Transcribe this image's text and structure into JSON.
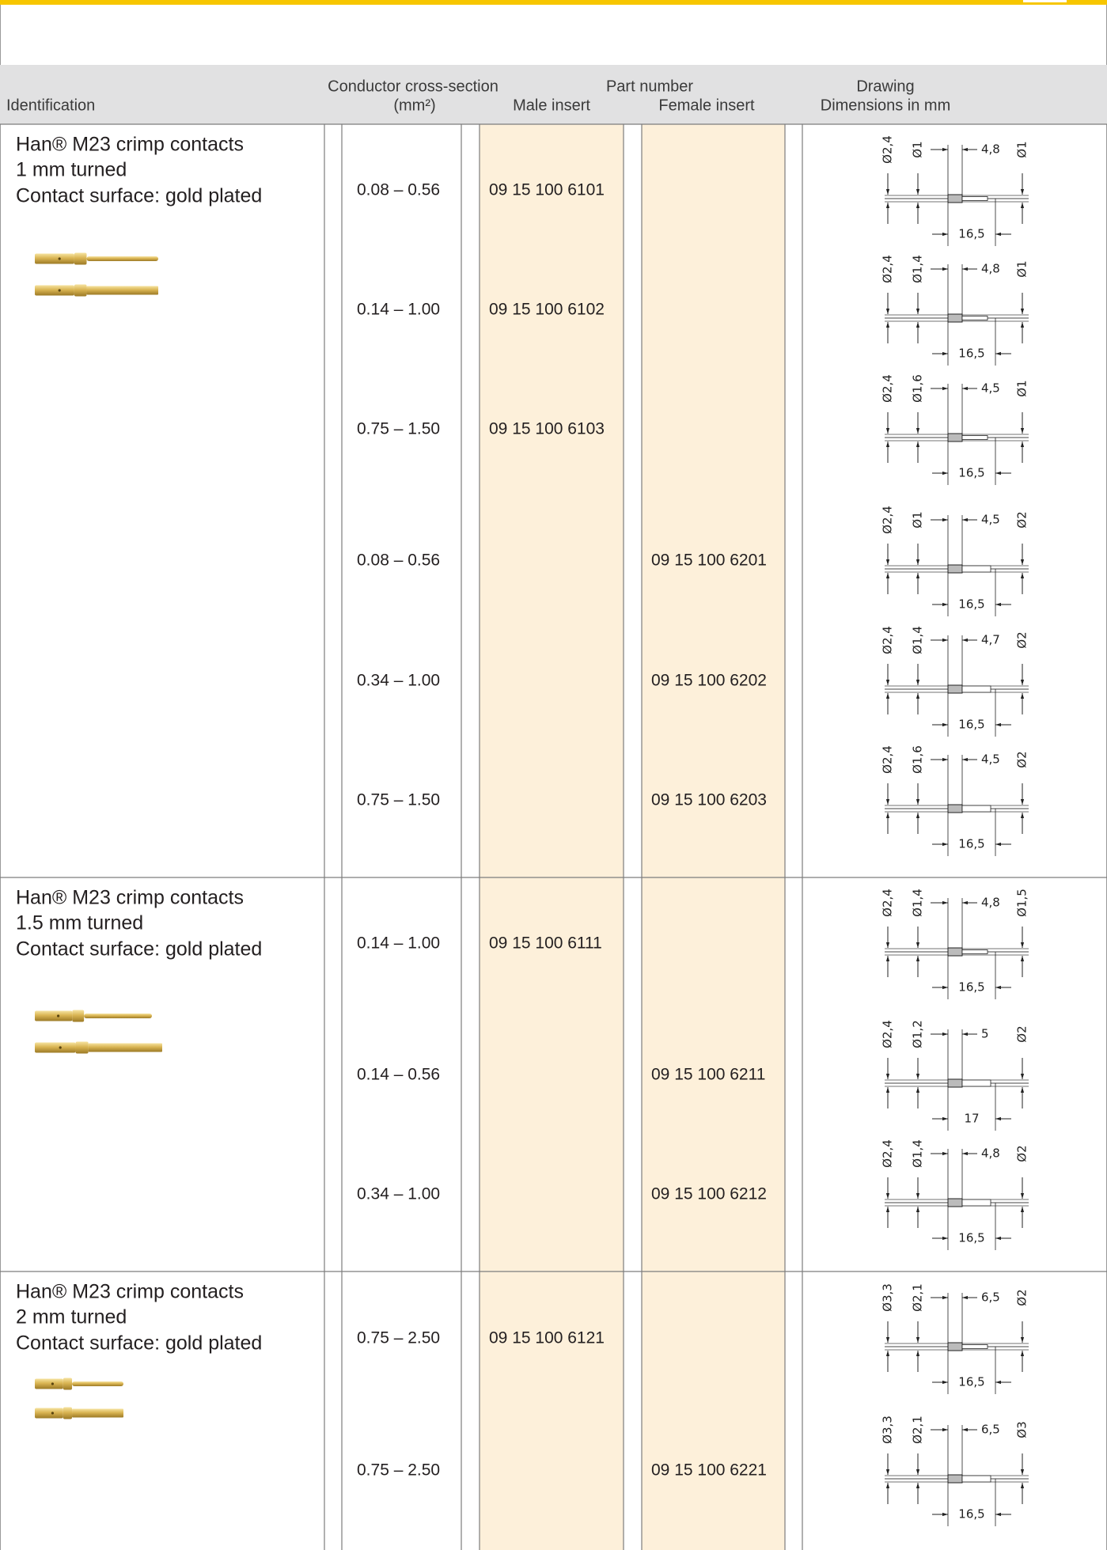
{
  "header": {
    "identification": "Identification",
    "conductor": "Conductor cross-section",
    "conductor_unit": "(mm²)",
    "part_number": "Part number",
    "male": "Male insert",
    "female": "Female insert",
    "drawing": "Drawing",
    "dimensions": "Dimensions in mm"
  },
  "groups": [
    {
      "title": "Han® M23 crimp contacts",
      "size": "1 mm turned",
      "surface": "Contact surface: gold plated",
      "rows": [
        {
          "cross_section": "0.08 – 0.56",
          "male": "09 15 100 6101",
          "drawing": {
            "d_outer": "Ø2,4",
            "d_inner": "Ø1",
            "length": "4,8",
            "d_tip": "Ø1",
            "total": "16,5"
          }
        },
        {
          "cross_section": "0.14 – 1.00",
          "male": "09 15 100 6102",
          "drawing": {
            "d_outer": "Ø2,4",
            "d_inner": "Ø1,4",
            "length": "4,8",
            "d_tip": "Ø1",
            "total": "16,5"
          }
        },
        {
          "cross_section": "0.75 – 1.50",
          "male": "09 15 100 6103",
          "drawing": {
            "d_outer": "Ø2,4",
            "d_inner": "Ø1,6",
            "length": "4,5",
            "d_tip": "Ø1",
            "total": "16,5"
          }
        },
        {
          "cross_section": "0.08 – 0.56",
          "female": "09 15 100 6201",
          "drawing": {
            "d_outer": "Ø2,4",
            "d_inner": "Ø1",
            "length": "4,5",
            "d_tip": "Ø2",
            "total": "16,5"
          }
        },
        {
          "cross_section": "0.34 – 1.00",
          "female": "09 15 100 6202",
          "drawing": {
            "d_outer": "Ø2,4",
            "d_inner": "Ø1,4",
            "length": "4,7",
            "d_tip": "Ø2",
            "total": "16,5"
          }
        },
        {
          "cross_section": "0.75 – 1.50",
          "female": "09 15 100 6203",
          "drawing": {
            "d_outer": "Ø2,4",
            "d_inner": "Ø1,6",
            "length": "4,5",
            "d_tip": "Ø2",
            "total": "16,5"
          }
        }
      ]
    },
    {
      "title": "Han® M23 crimp contacts",
      "size": "1.5 mm turned",
      "surface": "Contact surface: gold plated",
      "rows": [
        {
          "cross_section": "0.14 – 1.00",
          "male": "09 15 100 6111",
          "drawing": {
            "d_outer": "Ø2,4",
            "d_inner": "Ø1,4",
            "length": "4,8",
            "d_tip": "Ø1,5",
            "total": "16,5"
          }
        },
        {
          "cross_section": "0.14 – 0.56",
          "female": "09 15 100 6211",
          "drawing": {
            "d_outer": "Ø2,4",
            "d_inner": "Ø1,2",
            "length": "5",
            "d_tip": "Ø2",
            "total": "17"
          }
        },
        {
          "cross_section": "0.34 – 1.00",
          "female": "09 15 100 6212",
          "drawing": {
            "d_outer": "Ø2,4",
            "d_inner": "Ø1,4",
            "length": "4,8",
            "d_tip": "Ø2",
            "total": "16,5"
          }
        }
      ]
    },
    {
      "title": "Han® M23 crimp contacts",
      "size": "2 mm turned",
      "surface": "Contact surface: gold plated",
      "rows": [
        {
          "cross_section": "0.75 – 2.50",
          "male": "09 15 100 6121",
          "drawing": {
            "d_outer": "Ø3,3",
            "d_inner": "Ø2,1",
            "length": "6,5",
            "d_tip": "Ø2",
            "total": "16,5"
          }
        },
        {
          "cross_section": "0.75 – 2.50",
          "female": "09 15 100 6221",
          "drawing": {
            "d_outer": "Ø3,3",
            "d_inner": "Ø2,1",
            "length": "6,5",
            "d_tip": "Ø3",
            "total": "16,5"
          }
        }
      ]
    }
  ]
}
